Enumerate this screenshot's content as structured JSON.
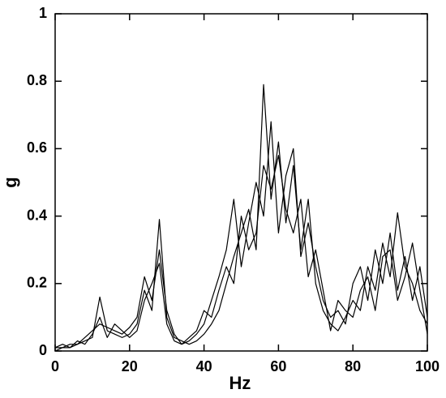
{
  "chart_data": {
    "type": "line",
    "x_label": "Hz",
    "y_label": "g",
    "x": [
      0,
      2,
      4,
      6,
      8,
      10,
      12,
      14,
      16,
      18,
      20,
      22,
      24,
      26,
      28,
      30,
      32,
      34,
      36,
      38,
      40,
      42,
      44,
      46,
      48,
      50,
      52,
      54,
      56,
      58,
      60,
      62,
      64,
      66,
      68,
      70,
      72,
      74,
      76,
      78,
      80,
      82,
      84,
      86,
      88,
      90,
      92,
      94,
      96,
      98,
      100
    ],
    "series": [
      {
        "color": "#000000",
        "values": [
          0.01,
          0.01,
          0.01,
          0.02,
          0.03,
          0.04,
          0.16,
          0.06,
          0.05,
          0.04,
          0.05,
          0.08,
          0.18,
          0.12,
          0.39,
          0.1,
          0.04,
          0.03,
          0.02,
          0.03,
          0.05,
          0.08,
          0.12,
          0.2,
          0.28,
          0.35,
          0.42,
          0.3,
          0.79,
          0.45,
          0.62,
          0.38,
          0.55,
          0.3,
          0.45,
          0.2,
          0.12,
          0.08,
          0.06,
          0.1,
          0.15,
          0.12,
          0.25,
          0.18,
          0.32,
          0.22,
          0.41,
          0.25,
          0.2,
          0.12,
          0.08
        ]
      },
      {
        "color": "#000000",
        "values": [
          0.0,
          0.01,
          0.02,
          0.02,
          0.04,
          0.06,
          0.08,
          0.07,
          0.06,
          0.05,
          0.07,
          0.1,
          0.22,
          0.15,
          0.3,
          0.12,
          0.05,
          0.02,
          0.03,
          0.05,
          0.08,
          0.15,
          0.22,
          0.3,
          0.45,
          0.25,
          0.38,
          0.5,
          0.4,
          0.68,
          0.35,
          0.52,
          0.6,
          0.28,
          0.38,
          0.25,
          0.15,
          0.1,
          0.12,
          0.08,
          0.2,
          0.25,
          0.15,
          0.3,
          0.2,
          0.35,
          0.18,
          0.28,
          0.15,
          0.25,
          0.1
        ]
      },
      {
        "color": "#000000",
        "values": [
          0.01,
          0.02,
          0.01,
          0.03,
          0.02,
          0.05,
          0.1,
          0.04,
          0.08,
          0.06,
          0.04,
          0.06,
          0.15,
          0.2,
          0.26,
          0.08,
          0.03,
          0.02,
          0.04,
          0.06,
          0.12,
          0.1,
          0.18,
          0.25,
          0.2,
          0.4,
          0.3,
          0.35,
          0.55,
          0.48,
          0.58,
          0.42,
          0.35,
          0.45,
          0.22,
          0.3,
          0.18,
          0.06,
          0.15,
          0.12,
          0.1,
          0.18,
          0.22,
          0.12,
          0.28,
          0.3,
          0.15,
          0.22,
          0.32,
          0.18,
          0.05
        ]
      }
    ],
    "xlim": [
      0,
      100
    ],
    "xticks": [
      0,
      20,
      40,
      60,
      80,
      100
    ],
    "ylim": [
      0,
      1
    ],
    "yticks": [
      0,
      0.2,
      0.4,
      0.6,
      0.8,
      1
    ]
  }
}
